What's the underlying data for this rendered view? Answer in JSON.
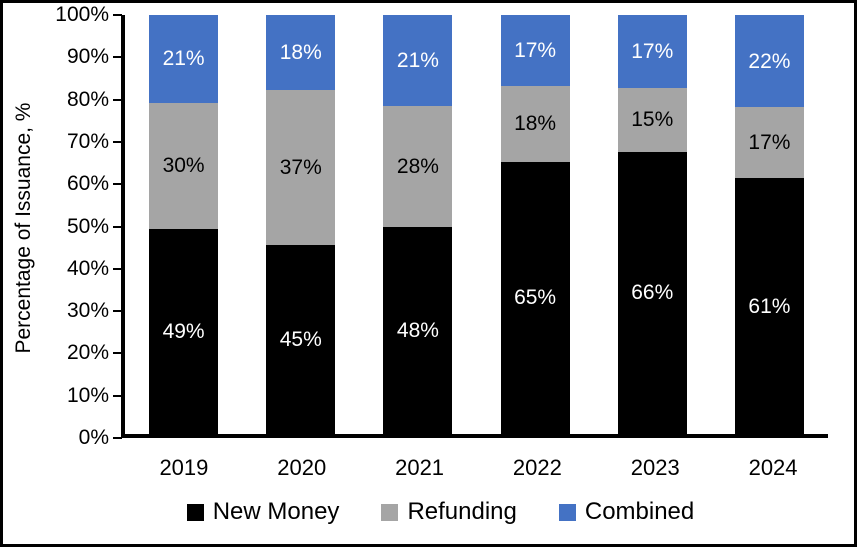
{
  "chart_data": {
    "type": "bar",
    "stacked": true,
    "title": "",
    "xlabel": "",
    "ylabel": "Percentage of Issuance, %",
    "ylim": [
      0,
      100
    ],
    "ytick_labels": [
      "0%",
      "10%",
      "20%",
      "30%",
      "40%",
      "50%",
      "60%",
      "70%",
      "80%",
      "90%",
      "100%"
    ],
    "categories": [
      "2019",
      "2020",
      "2021",
      "2022",
      "2023",
      "2024"
    ],
    "series": [
      {
        "name": "New Money",
        "color": "#000000",
        "label_color": "#ffffff",
        "values": [
          49,
          45,
          48,
          65,
          66,
          61
        ],
        "labels": [
          "49%",
          "45%",
          "48%",
          "65%",
          "66%",
          "61%"
        ]
      },
      {
        "name": "Refunding",
        "color": "#A5A5A5",
        "label_color": "#000000",
        "values": [
          30,
          37,
          28,
          18,
          15,
          17
        ],
        "labels": [
          "30%",
          "37%",
          "28%",
          "18%",
          "15%",
          "17%"
        ]
      },
      {
        "name": "Combined",
        "color": "#4472C4",
        "label_color": "#ffffff",
        "values": [
          21,
          18,
          21,
          17,
          17,
          22
        ],
        "labels": [
          "21%",
          "18%",
          "21%",
          "17%",
          "17%",
          "22%"
        ]
      }
    ],
    "data_labels": true,
    "grid": false,
    "legend_position": "bottom",
    "axis_color": "#000000"
  }
}
